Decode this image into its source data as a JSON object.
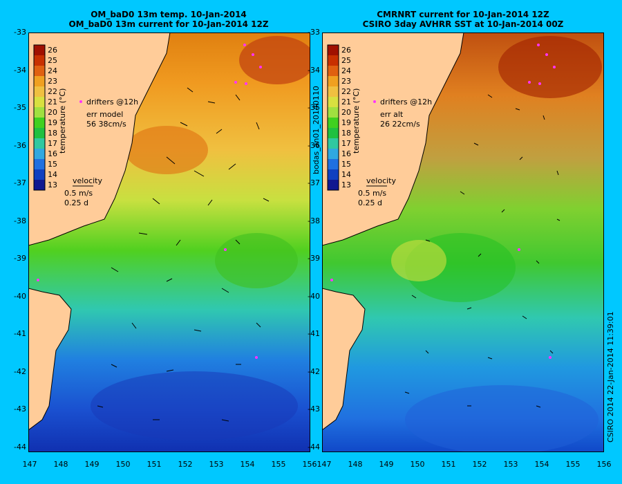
{
  "panels": [
    {
      "id": "left",
      "title_line1": "OM_baD0 13m temp. 10-Jan-2014",
      "title_line2": "OM_baD0 13m current for 10-Jan-2014 12Z",
      "legend_label": "temperature (°C)",
      "drifters_label": "drifters @12h",
      "err_label": "err model",
      "err_values": "56 38cm/s",
      "velocity_label": "velocity",
      "velocity_speed": "0.5 m/s",
      "velocity_days": "0.25 d"
    },
    {
      "id": "right",
      "title_line1": "CMRNRT current for 10-Jan-2014 12Z",
      "title_line2": "CSIRO 3day AVHRR SST at 10-Jan-2014 00Z",
      "legend_label": "temperature (°C)",
      "drifters_label": "drifters @12h",
      "err_label": "err alt",
      "err_values": "26 22cm/s",
      "velocity_label": "velocity",
      "velocity_speed": "0.5 m/s",
      "velocity_days": "0.25 d"
    }
  ],
  "colorbar_ticks": [
    "26",
    "25",
    "24",
    "23",
    "22",
    "21",
    "20",
    "19",
    "18",
    "17",
    "16",
    "15",
    "14",
    "13"
  ],
  "colorbar_colors": [
    "#a01000",
    "#c83000",
    "#e06010",
    "#f0a020",
    "#f0c040",
    "#d8e040",
    "#a0e040",
    "#40d020",
    "#20c040",
    "#30c8a0",
    "#30a8e0",
    "#2070e0",
    "#1040c0",
    "#101890"
  ],
  "lat_ticks": [
    "-33",
    "-34",
    "-35",
    "-36",
    "-37",
    "-38",
    "-39",
    "-40",
    "-41",
    "-42",
    "-43",
    "-44"
  ],
  "lon_ticks": [
    "147",
    "148",
    "149",
    "150",
    "151",
    "152",
    "153",
    "154",
    "155",
    "156"
  ],
  "side_label": "bodas_an01_20140110",
  "footer_label": "CSIRO 2014   22-Jan-2014 11:39:01",
  "colors": {
    "land": "#ffcc99",
    "frame_bg": "#00c8ff"
  }
}
